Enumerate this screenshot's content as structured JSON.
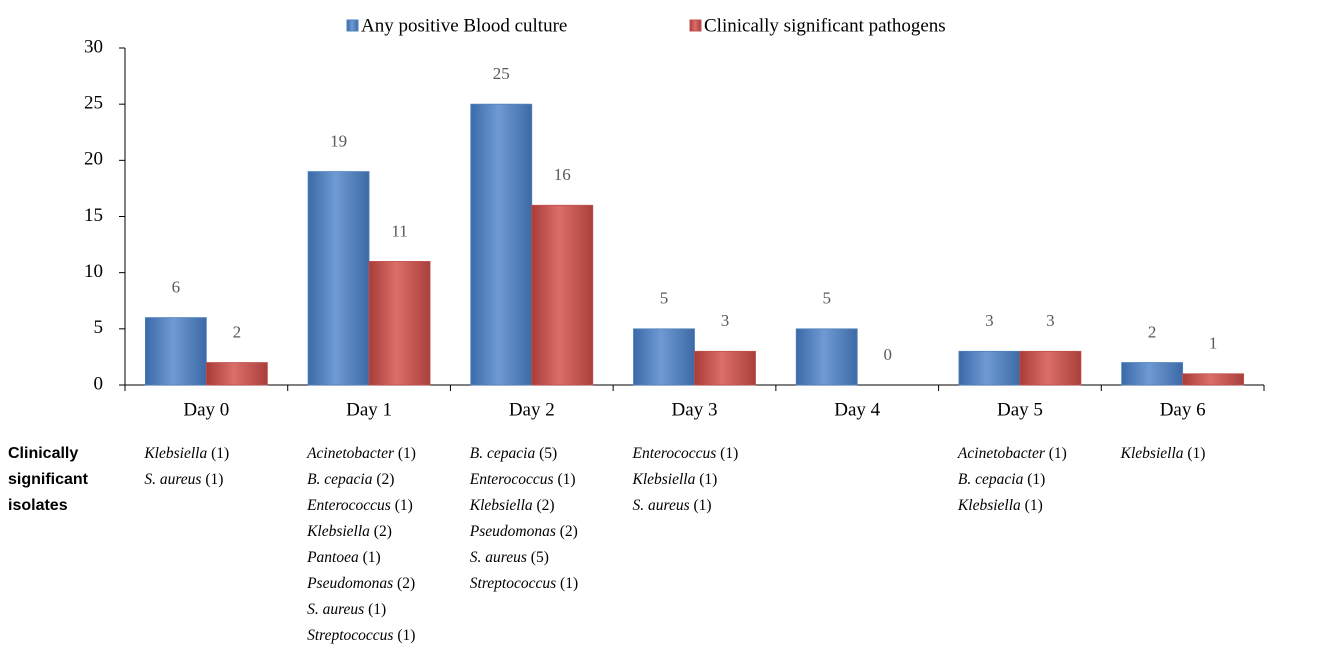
{
  "chart_data": {
    "type": "bar",
    "categories": [
      "Day 0",
      "Day 1",
      "Day 2",
      "Day 3",
      "Day 4",
      "Day 5",
      "Day 6"
    ],
    "series": [
      {
        "name": "Any positive Blood culture",
        "color": "#4f81bd",
        "values": [
          6,
          19,
          25,
          5,
          5,
          3,
          2
        ]
      },
      {
        "name": "Clinically significant pathogens",
        "color": "#c0504d",
        "values": [
          2,
          11,
          16,
          3,
          0,
          3,
          1
        ]
      }
    ],
    "ylim": [
      0,
      30
    ],
    "yticks": [
      0,
      5,
      10,
      15,
      20,
      25,
      30
    ],
    "grid": false,
    "legend": "top"
  },
  "isolates": {
    "label": "Clinically significant isolates",
    "days": [
      [
        {
          "organism": "Klebsiella",
          "count": "(1)"
        },
        {
          "organism": "S. aureus",
          "count": "(1)"
        }
      ],
      [
        {
          "organism": "Acinetobacter",
          "count": "(1)"
        },
        {
          "organism": "B. cepacia",
          "count": "(2)"
        },
        {
          "organism": "Enterococcus",
          "count": "(1)"
        },
        {
          "organism": "Klebsiella",
          "count": "(2)"
        },
        {
          "organism": "Pantoea",
          "count": "(1)"
        },
        {
          "organism": "Pseudomonas",
          "count": "(2)"
        },
        {
          "organism": "S. aureus",
          "count": "(1)"
        },
        {
          "organism": "Streptococcus",
          "count": "(1)"
        }
      ],
      [
        {
          "organism": "B. cepacia",
          "count": "(5)"
        },
        {
          "organism": "Enterococcus",
          "count": "(1)"
        },
        {
          "organism": "Klebsiella",
          "count": "(2)"
        },
        {
          "organism": "Pseudomonas",
          "count": "(2)"
        },
        {
          "organism": "S. aureus",
          "count": "(5)"
        },
        {
          "organism": "Streptococcus",
          "count": "(1)"
        }
      ],
      [
        {
          "organism": "Enterococcus",
          "count": "(1)"
        },
        {
          "organism": "Klebsiella",
          "count": "(1)"
        },
        {
          "organism": "S. aureus",
          "count": "(1)"
        }
      ],
      [],
      [
        {
          "organism": "Acinetobacter",
          "count": "(1)"
        },
        {
          "organism": "B. cepacia",
          "count": "(1)"
        },
        {
          "organism": "Klebsiella",
          "count": "(1)"
        }
      ],
      [
        {
          "organism": "Klebsiella",
          "count": "(1)"
        }
      ]
    ]
  }
}
